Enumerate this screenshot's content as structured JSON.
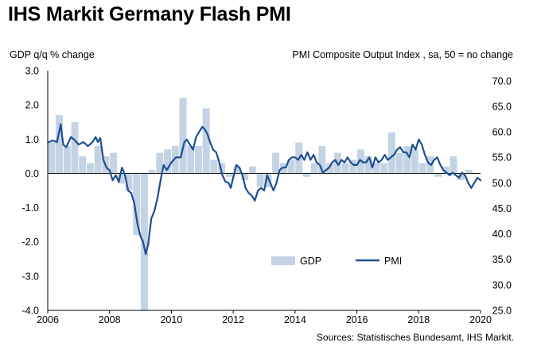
{
  "title": "IHS Markit Germany Flash PMI",
  "source": "Sources: Statistisches Bundesamt, IHS Markit.",
  "chart_data": {
    "type": "bar+line",
    "left_axis_label": "GDP q/q % change",
    "right_axis_label": "PMI Composite  Output Index  , sa, 50 = no change",
    "left_ylim": [
      -4.0,
      3.0
    ],
    "right_ylim": [
      25.0,
      72.0
    ],
    "left_ticks": [
      "3.0",
      "2.0",
      "1.0",
      "0.0",
      "-1.0",
      "-2.0",
      "-3.0",
      "-4.0"
    ],
    "right_ticks": [
      "70.0",
      "65.0",
      "60.0",
      "55.0",
      "50.0",
      "45.0",
      "40.0",
      "35.0",
      "30.0",
      "25.0"
    ],
    "x_ticks": [
      "2006",
      "2008",
      "2010",
      "2012",
      "2014",
      "2016",
      "2018",
      "2020"
    ],
    "xlim": [
      2006.0,
      2020.0
    ],
    "legend": [
      {
        "name": "GDP",
        "style": "bar",
        "color": "#c3d3e3"
      },
      {
        "name": "PMI",
        "style": "line",
        "color": "#1e4f93"
      }
    ],
    "gdp": {
      "name": "GDP",
      "quarters": [
        "2006Q1",
        "2006Q2",
        "2006Q3",
        "2006Q4",
        "2007Q1",
        "2007Q2",
        "2007Q3",
        "2007Q4",
        "2008Q1",
        "2008Q2",
        "2008Q3",
        "2008Q4",
        "2009Q1",
        "2009Q2",
        "2009Q3",
        "2009Q4",
        "2010Q1",
        "2010Q2",
        "2010Q3",
        "2010Q4",
        "2011Q1",
        "2011Q2",
        "2011Q3",
        "2011Q4",
        "2012Q1",
        "2012Q2",
        "2012Q3",
        "2012Q4",
        "2013Q1",
        "2013Q2",
        "2013Q3",
        "2013Q4",
        "2014Q1",
        "2014Q2",
        "2014Q3",
        "2014Q4",
        "2015Q1",
        "2015Q2",
        "2015Q3",
        "2015Q4",
        "2016Q1",
        "2016Q2",
        "2016Q3",
        "2016Q4",
        "2017Q1",
        "2017Q2",
        "2017Q3",
        "2017Q4",
        "2018Q1",
        "2018Q2",
        "2018Q3",
        "2018Q4",
        "2019Q1",
        "2019Q2",
        "2019Q3",
        "2019Q4"
      ],
      "values": [
        0.9,
        1.7,
        0.8,
        1.5,
        0.5,
        0.3,
        0.8,
        0.5,
        0.6,
        -0.3,
        -0.5,
        -1.8,
        -4.0,
        0.1,
        0.6,
        0.7,
        0.8,
        2.2,
        0.8,
        0.8,
        1.9,
        0.4,
        0.3,
        -0.1,
        0.2,
        -0.2,
        0.2,
        -0.4,
        -0.4,
        0.6,
        0.3,
        0.4,
        0.9,
        -0.1,
        0.3,
        0.8,
        0.3,
        0.6,
        0.3,
        0.4,
        0.7,
        0.5,
        0.3,
        0.3,
        1.2,
        0.6,
        0.8,
        0.7,
        0.3,
        0.5,
        -0.1,
        0.2,
        0.5,
        -0.2,
        0.1,
        0.0
      ]
    },
    "pmi": {
      "name": "PMI",
      "x": [
        2006.0,
        2006.15,
        2006.3,
        2006.42,
        2006.5,
        2006.6,
        2006.75,
        2006.85,
        2007.0,
        2007.15,
        2007.3,
        2007.45,
        2007.55,
        2007.62,
        2007.7,
        2007.8,
        2007.9,
        2008.0,
        2008.1,
        2008.2,
        2008.3,
        2008.4,
        2008.5,
        2008.6,
        2008.7,
        2008.8,
        2008.9,
        2009.0,
        2009.08,
        2009.17,
        2009.25,
        2009.35,
        2009.45,
        2009.55,
        2009.65,
        2009.75,
        2009.85,
        2010.0,
        2010.15,
        2010.3,
        2010.42,
        2010.5,
        2010.6,
        2010.7,
        2010.8,
        2010.9,
        2011.0,
        2011.08,
        2011.17,
        2011.25,
        2011.35,
        2011.45,
        2011.55,
        2011.65,
        2011.75,
        2011.85,
        2011.92,
        2012.0,
        2012.1,
        2012.2,
        2012.3,
        2012.4,
        2012.5,
        2012.6,
        2012.7,
        2012.8,
        2012.9,
        2013.0,
        2013.1,
        2013.2,
        2013.3,
        2013.4,
        2013.5,
        2013.6,
        2013.7,
        2013.8,
        2013.9,
        2014.0,
        2014.1,
        2014.2,
        2014.3,
        2014.4,
        2014.5,
        2014.6,
        2014.7,
        2014.8,
        2014.9,
        2015.0,
        2015.1,
        2015.2,
        2015.3,
        2015.4,
        2015.5,
        2015.6,
        2015.7,
        2015.8,
        2015.9,
        2016.0,
        2016.1,
        2016.2,
        2016.3,
        2016.4,
        2016.5,
        2016.6,
        2016.7,
        2016.8,
        2016.9,
        2017.0,
        2017.1,
        2017.2,
        2017.3,
        2017.4,
        2017.5,
        2017.6,
        2017.7,
        2017.8,
        2017.9,
        2018.0,
        2018.1,
        2018.2,
        2018.3,
        2018.4,
        2018.5,
        2018.6,
        2018.7,
        2018.8,
        2018.9,
        2019.0,
        2019.1,
        2019.2,
        2019.3,
        2019.4,
        2019.5,
        2019.6,
        2019.7,
        2019.8,
        2019.9,
        2020.0
      ],
      "values": [
        57.9,
        58.3,
        58.0,
        61.5,
        57.5,
        57.0,
        59.0,
        58.5,
        57.5,
        58.0,
        57.2,
        58.0,
        59.0,
        58.0,
        58.8,
        54.5,
        53.0,
        52.5,
        50.5,
        51.5,
        50.2,
        53.0,
        51.5,
        48.5,
        48.0,
        46.0,
        42.0,
        39.5,
        38.5,
        36.0,
        38.0,
        43.0,
        44.5,
        47.0,
        50.5,
        53.5,
        52.5,
        54.0,
        55.0,
        55.0,
        58.0,
        58.5,
        57.5,
        56.5,
        59.0,
        60.0,
        61.0,
        60.5,
        59.5,
        58.0,
        56.5,
        56.0,
        54.0,
        51.5,
        50.2,
        50.0,
        49.0,
        51.0,
        53.5,
        53.0,
        51.5,
        49.0,
        48.0,
        47.5,
        46.5,
        48.5,
        49.0,
        48.5,
        51.5,
        50.0,
        48.5,
        50.0,
        52.5,
        53.0,
        53.0,
        54.5,
        55.0,
        55.0,
        54.5,
        55.5,
        54.5,
        56.0,
        54.5,
        55.5,
        54.0,
        53.5,
        52.0,
        52.5,
        53.0,
        54.0,
        54.5,
        53.5,
        54.5,
        54.0,
        55.0,
        54.0,
        53.5,
        53.5,
        54.5,
        54.0,
        54.0,
        55.0,
        53.0,
        55.0,
        54.0,
        54.5,
        55.5,
        54.5,
        55.0,
        55.5,
        56.5,
        57.0,
        56.0,
        56.0,
        55.0,
        57.5,
        56.5,
        58.5,
        57.5,
        55.5,
        54.0,
        53.5,
        54.5,
        55.0,
        53.5,
        52.5,
        52.0,
        51.5,
        52.0,
        51.5,
        51.0,
        52.0,
        51.5,
        50.0,
        49.0,
        50.0,
        51.0,
        50.5
      ]
    }
  }
}
